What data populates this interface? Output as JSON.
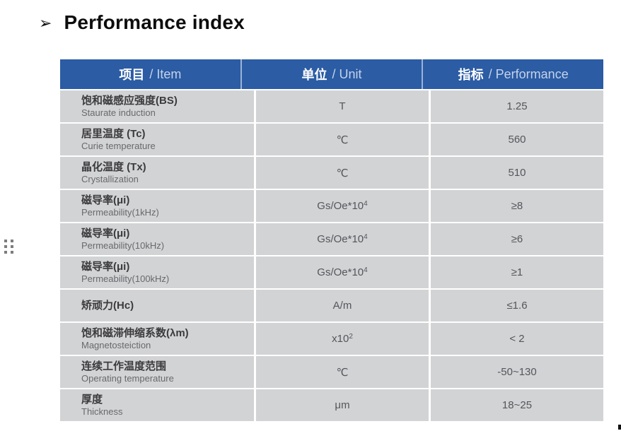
{
  "page": {
    "title_bullet": "➢",
    "title": "Performance index"
  },
  "colors": {
    "header_bg": "#2b5ca4",
    "header_divider": "#9cb3d8",
    "row_bg": "#d2d3d5",
    "row_divider": "#ffffff"
  },
  "table": {
    "headers": [
      {
        "zh": "项目",
        "en": "/ Item"
      },
      {
        "zh": "单位",
        "en": "/ Unit"
      },
      {
        "zh": "指标",
        "en": "/ Performance"
      }
    ],
    "rows": [
      {
        "item_zh": "饱和磁感应强度(BS)",
        "item_en": "Staurate induction",
        "unit": "T",
        "unit_sup": "",
        "value": "1.25"
      },
      {
        "item_zh": "居里温度 (Tc)",
        "item_en": "Curie temperature",
        "unit": "℃",
        "unit_sup": "",
        "value": "560"
      },
      {
        "item_zh": "晶化温度 (Tx)",
        "item_en": "Crystallization",
        "unit": "℃",
        "unit_sup": "",
        "value": "510"
      },
      {
        "item_zh": "磁导率(μi)",
        "item_en": "Permeability(1kHz)",
        "unit": "Gs/Oe*10",
        "unit_sup": "4",
        "value": "≥8"
      },
      {
        "item_zh": "磁导率(μi)",
        "item_en": "Permeability(10kHz)",
        "unit": "Gs/Oe*10",
        "unit_sup": "4",
        "value": "≥6"
      },
      {
        "item_zh": "磁导率(μi)",
        "item_en": "Permeability(100kHz)",
        "unit": "Gs/Oe*10",
        "unit_sup": "4",
        "value": "≥1"
      },
      {
        "item_zh": "矫顽力(Hc)",
        "item_en": "",
        "unit": "A/m",
        "unit_sup": "",
        "value": "≤1.6"
      },
      {
        "item_zh": "饱和磁滞伸缩系数(λm)",
        "item_en": "Magnetosteiction",
        "unit": "x10",
        "unit_sup": "2",
        "value": "< 2"
      },
      {
        "item_zh": "连续工作温度范围",
        "item_en": "Operating temperature",
        "unit": "℃",
        "unit_sup": "",
        "value": "-50~130"
      },
      {
        "item_zh": "厚度",
        "item_en": "Thickness",
        "unit": "μm",
        "unit_sup": "",
        "value": "18~25"
      }
    ]
  }
}
